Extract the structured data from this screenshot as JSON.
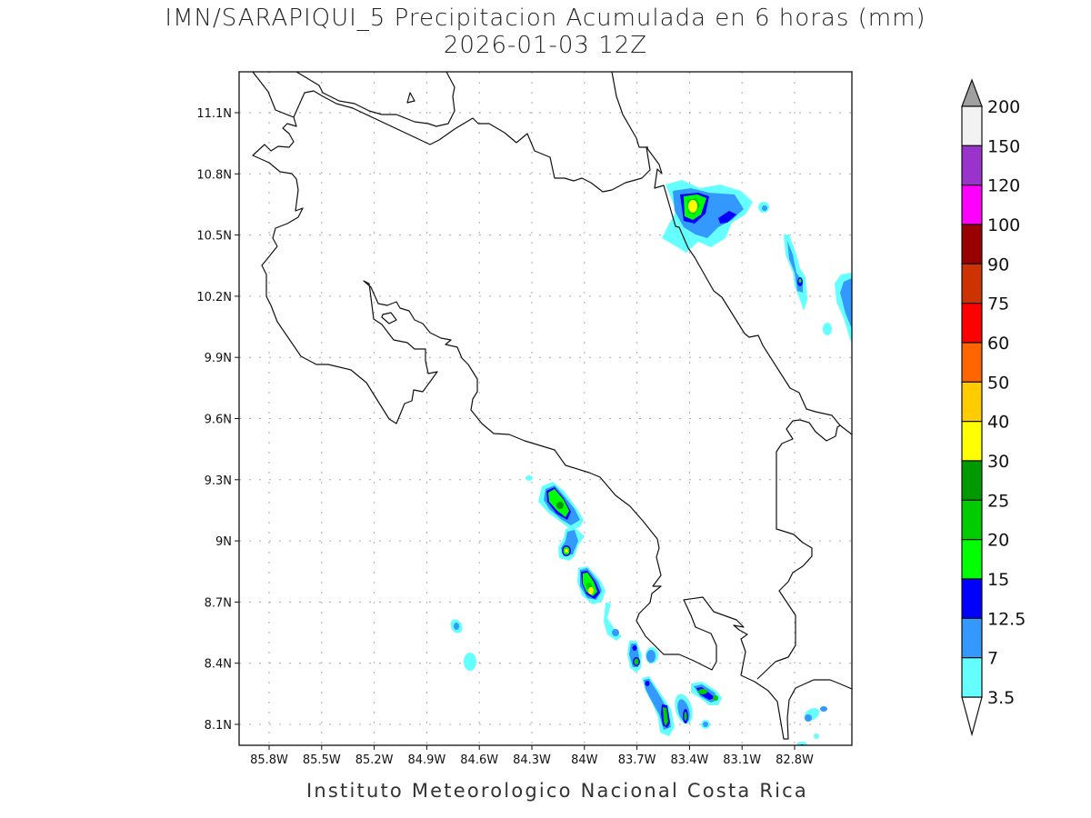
{
  "title": {
    "line1": "IMN/SARAPIQUI_5 Precipitacion Acumulada en 6 horas (mm)",
    "line2": "2026-01-03 12Z"
  },
  "footer": "Instituto Meteorologico Nacional Costa Rica",
  "map": {
    "region": "Costa Rica",
    "lon_range": [
      -86.0,
      -82.45
    ],
    "lat_range": [
      8.0,
      11.3
    ],
    "grid": true,
    "lon_ticks": [
      "85.8W",
      "85.5W",
      "85.2W",
      "84.9W",
      "84.6W",
      "84.3W",
      "84W",
      "83.7W",
      "83.4W",
      "83.1W",
      "82.8W"
    ],
    "lat_ticks": [
      "8.1N",
      "8.4N",
      "8.7N",
      "9N",
      "9.3N",
      "9.6N",
      "9.9N",
      "10.2N",
      "10.5N",
      "10.8N",
      "11.1N"
    ]
  },
  "colorbar": {
    "units": "mm",
    "labels": [
      "200",
      "150",
      "120",
      "100",
      "90",
      "75",
      "60",
      "50",
      "40",
      "30",
      "25",
      "20",
      "15",
      "12.5",
      "7",
      "3.5"
    ],
    "colors": [
      "#f2f2f2",
      "#9933cc",
      "#ff00ff",
      "#990000",
      "#cc3300",
      "#ff0000",
      "#ff6600",
      "#ffcc00",
      "#ffff00",
      "#009900",
      "#00cc00",
      "#00ff00",
      "#0000ff",
      "#3399ff",
      "#66ffff"
    ],
    "over_color": "#a0a0a0",
    "under_color": "#ffffff"
  }
}
